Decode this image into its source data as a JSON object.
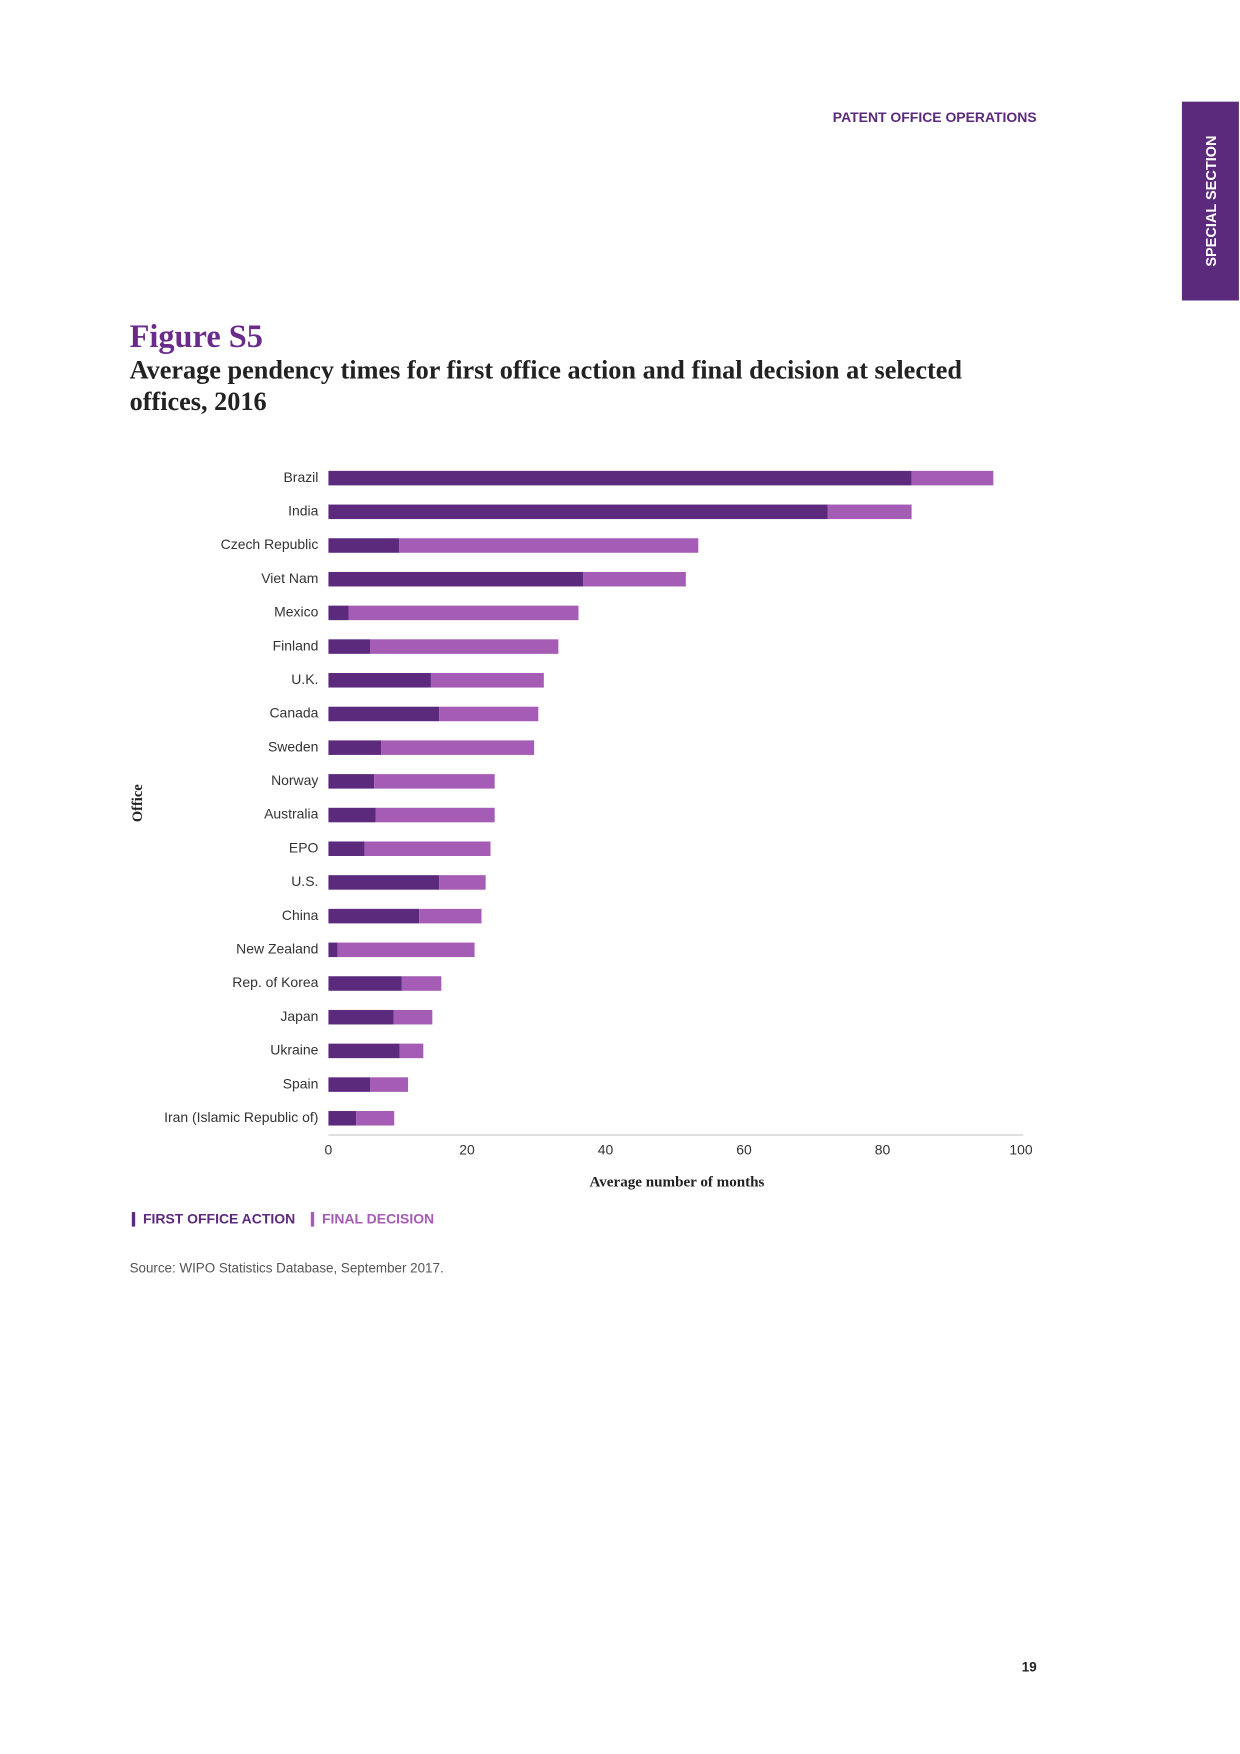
{
  "header": "PATENT OFFICE OPERATIONS",
  "side_tab": "SPECIAL SECTION",
  "page_number": "19",
  "source": "Source: WIPO Statistics Database, September 2017.",
  "chart_data": {
    "type": "stacked_bar_horizontal",
    "figure_label": "Figure S5",
    "title": "Average pendency times for first office action and final decision at selected offices, 2016",
    "y_label": "Office",
    "x_label": "Average number of months",
    "categories": [
      "Brazil",
      "India",
      "Czech Republic",
      "Viet Nam",
      "Mexico",
      "Finland",
      "U.K.",
      "Canada",
      "Sweden",
      "Norway",
      "Australia",
      "EPO",
      "U.S.",
      "China",
      "New Zealand",
      "Rep. of Korea",
      "Japan",
      "Ukraine",
      "Spain",
      "Iran (Islamic Republic of)"
    ],
    "series": [
      {
        "name": "FIRST OFFICE ACTION",
        "color": "#5c2a7c",
        "values": [
          84.2,
          72.1,
          10.2,
          36.8,
          2.9,
          6.0,
          14.8,
          16.0,
          7.6,
          6.6,
          6.8,
          5.2,
          16.0,
          13.1,
          1.3,
          10.6,
          9.4,
          10.3,
          6.0,
          4.0
        ]
      },
      {
        "name": "FINAL DECISION",
        "color": "#a45cb4",
        "values": [
          11.8,
          12.1,
          43.2,
          14.8,
          33.2,
          27.2,
          16.3,
          14.3,
          22.1,
          17.4,
          17.2,
          18.2,
          6.7,
          9.0,
          19.8,
          5.7,
          5.6,
          3.4,
          5.5,
          5.5
        ]
      }
    ],
    "xlim": [
      0,
      100
    ],
    "xticks": [
      0,
      20,
      40,
      60,
      80,
      100
    ],
    "grid": false
  }
}
